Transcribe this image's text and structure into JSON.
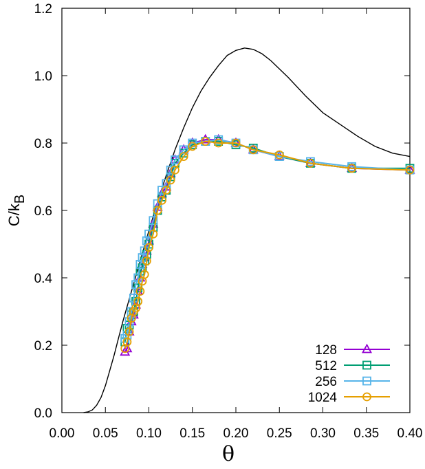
{
  "chart_data": {
    "type": "line",
    "xlabel": "θ",
    "ylabel": "C/k",
    "ylabel_sub": "B",
    "xlim": [
      0.0,
      0.4
    ],
    "ylim": [
      0.0,
      1.2
    ],
    "xticks": [
      "0.00",
      "0.05",
      "0.10",
      "0.15",
      "0.20",
      "0.25",
      "0.30",
      "0.35",
      "0.40"
    ],
    "xtick_values": [
      0.0,
      0.05,
      0.1,
      0.15,
      0.2,
      0.25,
      0.3,
      0.35,
      0.4
    ],
    "yticks": [
      "0.0",
      "0.2",
      "0.4",
      "0.6",
      "0.8",
      "1.0",
      "1.2"
    ],
    "ytick_values": [
      0.0,
      0.2,
      0.4,
      0.6,
      0.8,
      1.0,
      1.2
    ],
    "grid": false,
    "legend_position": "bottom-right",
    "curve": {
      "color": "#000000",
      "x": [
        0.025,
        0.03,
        0.035,
        0.04,
        0.045,
        0.05,
        0.055,
        0.06,
        0.065,
        0.07,
        0.075,
        0.08,
        0.085,
        0.09,
        0.095,
        0.1,
        0.11,
        0.12,
        0.13,
        0.14,
        0.15,
        0.16,
        0.17,
        0.18,
        0.19,
        0.2,
        0.21,
        0.22,
        0.23,
        0.24,
        0.25,
        0.26,
        0.28,
        0.3,
        0.32,
        0.34,
        0.36,
        0.38,
        0.4
      ],
      "y": [
        0.0,
        0.002,
        0.008,
        0.022,
        0.045,
        0.08,
        0.125,
        0.17,
        0.22,
        0.27,
        0.315,
        0.36,
        0.405,
        0.45,
        0.495,
        0.54,
        0.625,
        0.705,
        0.78,
        0.845,
        0.905,
        0.955,
        0.995,
        1.03,
        1.06,
        1.075,
        1.082,
        1.078,
        1.065,
        1.045,
        1.02,
        0.995,
        0.94,
        0.89,
        0.855,
        0.82,
        0.79,
        0.77,
        0.76
      ]
    },
    "series": [
      {
        "name": "128",
        "color": "#9400d3",
        "marker": "triangle",
        "x": [
          0.0725,
          0.075,
          0.0775,
          0.08,
          0.0825,
          0.085,
          0.0875,
          0.09,
          0.0925,
          0.095,
          0.0975,
          0.1,
          0.105,
          0.11,
          0.115,
          0.12,
          0.125,
          0.13,
          0.14,
          0.15,
          0.165,
          0.18,
          0.2,
          0.22,
          0.25,
          0.2857,
          0.3333,
          0.4
        ],
        "y": [
          0.18,
          0.19,
          0.24,
          0.27,
          0.29,
          0.32,
          0.36,
          0.4,
          0.44,
          0.46,
          0.48,
          0.51,
          0.56,
          0.61,
          0.65,
          0.67,
          0.71,
          0.75,
          0.78,
          0.8,
          0.81,
          0.81,
          0.8,
          0.78,
          0.76,
          0.74,
          0.725,
          0.72
        ]
      },
      {
        "name": "512",
        "color": "#009e73",
        "marker": "square",
        "x": [
          0.0725,
          0.075,
          0.0775,
          0.08,
          0.0825,
          0.085,
          0.0875,
          0.09,
          0.0925,
          0.095,
          0.0975,
          0.1,
          0.105,
          0.11,
          0.115,
          0.12,
          0.125,
          0.13,
          0.14,
          0.15,
          0.165,
          0.18,
          0.2,
          0.22,
          0.25,
          0.2857,
          0.3333,
          0.4
        ],
        "y": [
          0.21,
          0.25,
          0.26,
          0.29,
          0.3,
          0.33,
          0.37,
          0.42,
          0.43,
          0.45,
          0.47,
          0.5,
          0.55,
          0.6,
          0.64,
          0.66,
          0.7,
          0.74,
          0.77,
          0.795,
          0.805,
          0.805,
          0.795,
          0.785,
          0.76,
          0.74,
          0.725,
          0.725
        ]
      },
      {
        "name": "256",
        "color": "#56b4e9",
        "marker": "square",
        "x": [
          0.0725,
          0.075,
          0.0775,
          0.08,
          0.0825,
          0.085,
          0.0875,
          0.09,
          0.0925,
          0.095,
          0.0975,
          0.1,
          0.105,
          0.11,
          0.115,
          0.12,
          0.125,
          0.13,
          0.14,
          0.15,
          0.165,
          0.18,
          0.2,
          0.22,
          0.25,
          0.2857,
          0.3333,
          0.4
        ],
        "y": [
          0.22,
          0.23,
          0.27,
          0.3,
          0.34,
          0.38,
          0.4,
          0.44,
          0.46,
          0.48,
          0.51,
          0.53,
          0.57,
          0.62,
          0.66,
          0.68,
          0.72,
          0.75,
          0.78,
          0.8,
          0.805,
          0.81,
          0.8,
          0.78,
          0.76,
          0.745,
          0.73,
          0.72
        ]
      },
      {
        "name": "1024",
        "color": "#e69f00",
        "marker": "circle",
        "x": [
          0.0725,
          0.075,
          0.0775,
          0.08,
          0.0825,
          0.085,
          0.0875,
          0.09,
          0.0925,
          0.095,
          0.0975,
          0.1,
          0.105,
          0.11,
          0.115,
          0.12,
          0.125,
          0.13,
          0.14,
          0.15,
          0.165,
          0.18,
          0.2,
          0.22,
          0.25,
          0.2857,
          0.3333,
          0.4
        ],
        "y": [
          0.19,
          0.21,
          0.24,
          0.28,
          0.3,
          0.31,
          0.33,
          0.36,
          0.39,
          0.41,
          0.45,
          0.49,
          0.53,
          0.6,
          0.63,
          0.66,
          0.69,
          0.72,
          0.76,
          0.79,
          0.805,
          0.8,
          0.8,
          0.78,
          0.765,
          0.74,
          0.725,
          0.72
        ]
      }
    ]
  }
}
